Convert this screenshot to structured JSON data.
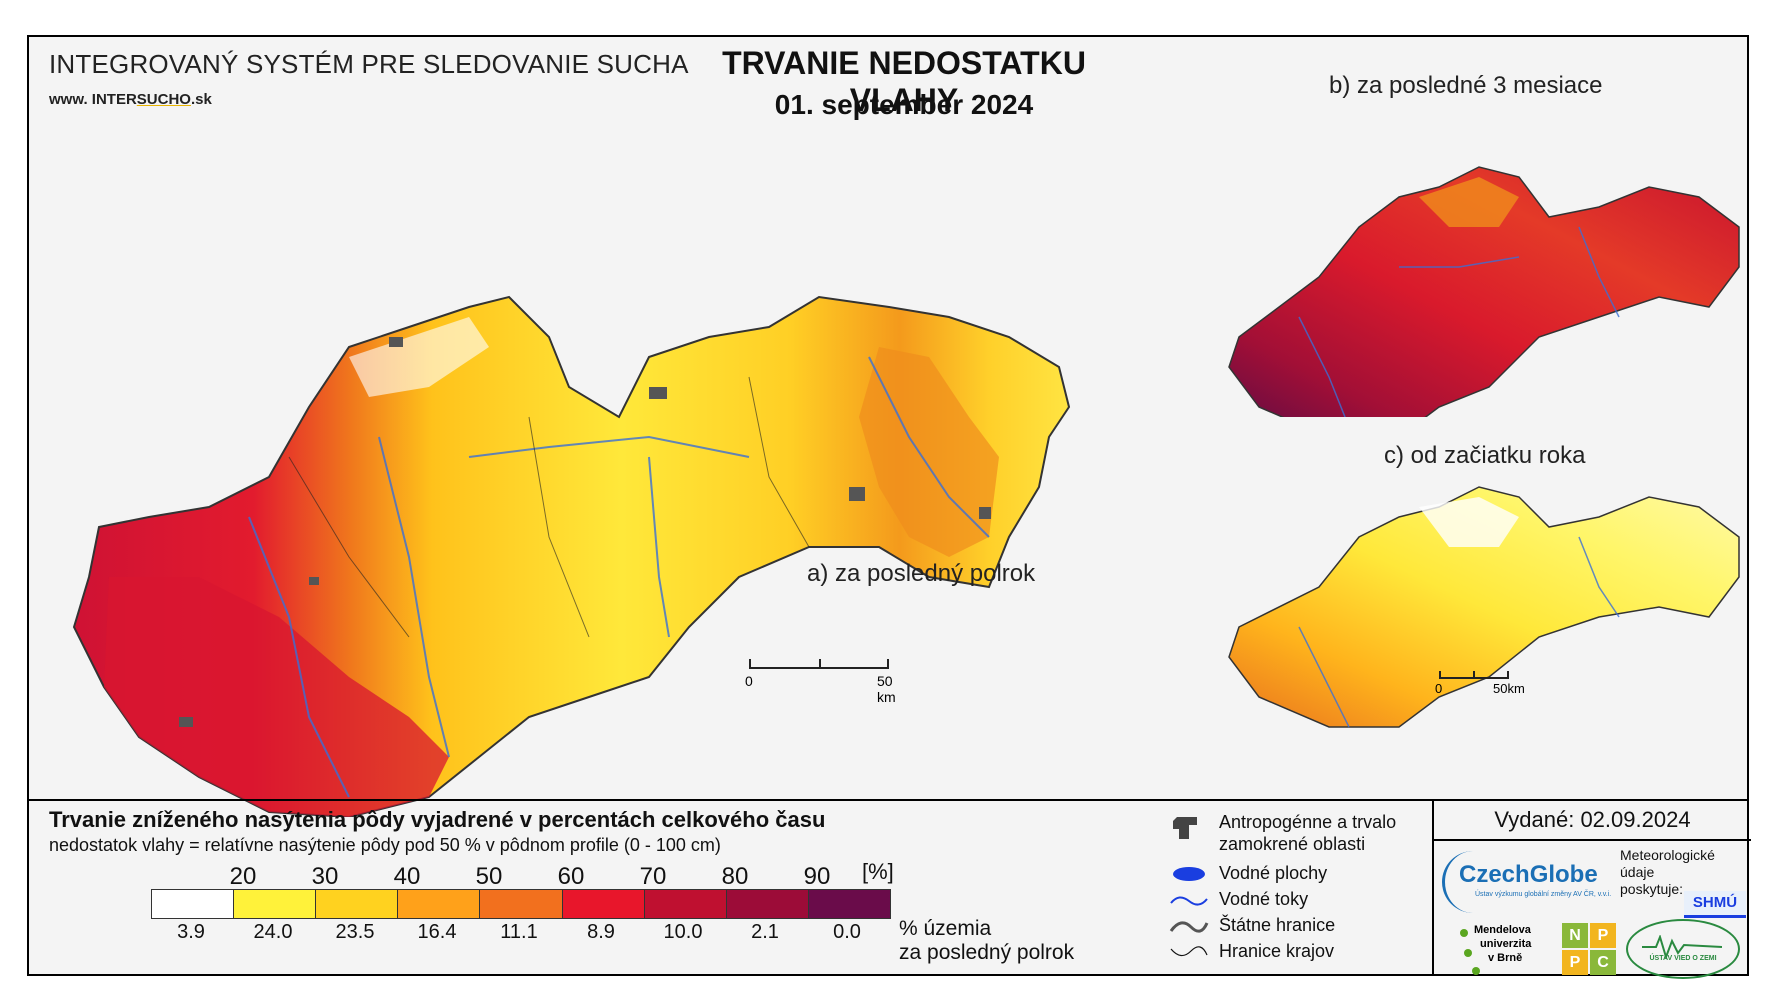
{
  "header": {
    "system_name": "INTEGROVANÝ SYSTÉM PRE SLEDOVANIE SUCHA",
    "website_prefix": "www. INTER",
    "website_mid": "SUCHO",
    "website_suffix": ".sk",
    "title": "TRVANIE NEDOSTATKU VLAHY",
    "date": "01. september 2024"
  },
  "maps": {
    "a_label": "a) za posledný polrok",
    "b_label": "b) za posledné 3 mesiace",
    "c_label": "c) od začiatku roka",
    "scale_main": [
      "0",
      "50 km"
    ],
    "scale_small": [
      "0",
      "50km"
    ]
  },
  "legend": {
    "title": "Trvanie zníženého nasýtenia pôdy vyjadrené v percentách celkového času",
    "subtitle": "nedostatok vlahy = relatívne nasýtenie pôdy pod 50 % v pôdnom profile (0 - 100 cm)",
    "unit": "[%]",
    "ticks": [
      "20",
      "30",
      "40",
      "50",
      "60",
      "70",
      "80",
      "90"
    ],
    "colors": [
      "#ffffff",
      "#fff23a",
      "#ffd21f",
      "#ffa11a",
      "#f2701e",
      "#e8162b",
      "#bf1030",
      "#9c0c38",
      "#6a0c4a"
    ],
    "percentages": [
      "3.9",
      "24.0",
      "23.5",
      "16.4",
      "11.1",
      "8.9",
      "10.0",
      "2.1",
      "0.0"
    ],
    "pct_caption_1": "% územia",
    "pct_caption_2": "za posledný polrok"
  },
  "legend_symbols": {
    "anthro_1": "Antropogénne a trvalo",
    "anthro_2": "zamokrené oblasti",
    "water_bodies": "Vodné plochy",
    "water_streams": "Vodné toky",
    "state_border": "Štátne hranice",
    "region_border": "Hranice krajov"
  },
  "issued": {
    "text": "Vydané: 02.09.2024",
    "czechglobe": "CzechGlobe",
    "czechglobe_sub": "Ústav výzkumu globální změny AV ČR, v.v.i.",
    "meteo_1": "Meteorologické",
    "meteo_2": "údaje",
    "meteo_3": "poskytuje:",
    "shmu": "SHMÚ",
    "mendel_1": "Mendelova",
    "mendel_2": "univerzita",
    "mendel_3": "v Brně",
    "nppc": [
      "N",
      "P",
      "P",
      "C"
    ],
    "ustav": "ÚSTAV VIED O ZEMI"
  }
}
